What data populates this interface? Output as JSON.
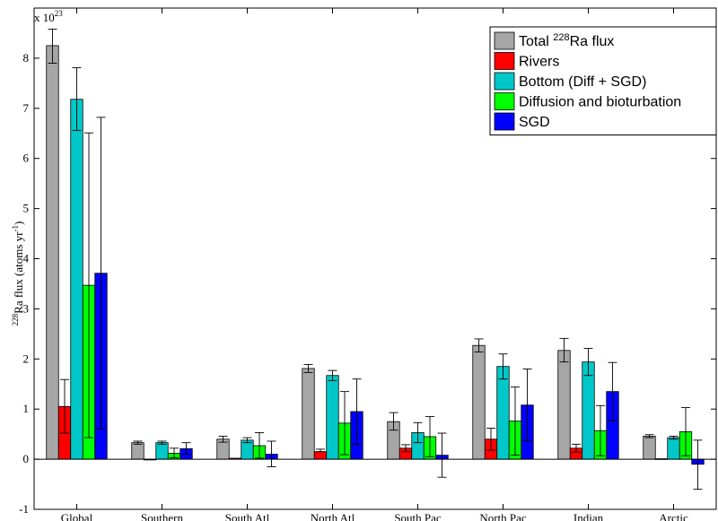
{
  "chart_data": {
    "type": "bar",
    "multiplier_label": "x 10",
    "multiplier_exp": "23",
    "ylabel_prefix": "228",
    "ylabel_main": "Ra flux (atoms yr",
    "ylabel_exp": "-1",
    "ylabel_close": ")",
    "ylim": [
      -1,
      9
    ],
    "yticks": [
      "-1",
      "0",
      "1",
      "2",
      "3",
      "4",
      "5",
      "6",
      "7",
      "8"
    ],
    "categories": [
      "Global",
      "Southern",
      "South Atl",
      "North Atl",
      "South Pac",
      "North Pac",
      "Indian",
      "Arctic"
    ],
    "legend_position": "top-right",
    "series": [
      {
        "name_pre": "Total ",
        "name_sup": "228",
        "name_post": "Ra flux",
        "color": "#a6a6a6",
        "values": [
          8.25,
          0.33,
          0.4,
          1.81,
          0.75,
          2.27,
          2.17,
          0.46
        ],
        "err_low": [
          0.35,
          0.03,
          0.06,
          0.08,
          0.17,
          0.13,
          0.23,
          0.03
        ],
        "err_high": [
          0.33,
          0.03,
          0.06,
          0.08,
          0.18,
          0.13,
          0.24,
          0.03
        ]
      },
      {
        "name_pre": "Rivers",
        "name_sup": "",
        "name_post": "",
        "color": "#ff0000",
        "values": [
          1.05,
          0.0,
          0.02,
          0.15,
          0.22,
          0.4,
          0.22,
          0.01
        ],
        "err_low": [
          0.53,
          0.0,
          0.0,
          0.0,
          0.07,
          0.22,
          0.08,
          0.0
        ],
        "err_high": [
          0.54,
          0.0,
          0.0,
          0.05,
          0.07,
          0.22,
          0.08,
          0.0
        ]
      },
      {
        "name_pre": "Bottom (Diff + SGD)",
        "name_sup": "",
        "name_post": "",
        "color": "#00c8c8",
        "values": [
          7.18,
          0.33,
          0.38,
          1.67,
          0.53,
          1.85,
          1.94,
          0.43
        ],
        "err_low": [
          0.62,
          0.03,
          0.05,
          0.1,
          0.2,
          0.25,
          0.27,
          0.03
        ],
        "err_high": [
          0.63,
          0.03,
          0.05,
          0.1,
          0.2,
          0.25,
          0.27,
          0.03
        ]
      },
      {
        "name_pre": "Diffusion and bioturbation",
        "name_sup": "",
        "name_post": "",
        "color": "#00ff00",
        "values": [
          3.47,
          0.12,
          0.27,
          0.72,
          0.45,
          0.76,
          0.57,
          0.55
        ],
        "err_low": [
          3.04,
          0.09,
          0.25,
          0.63,
          0.4,
          0.68,
          0.5,
          0.48
        ],
        "err_high": [
          3.04,
          0.1,
          0.26,
          0.63,
          0.4,
          0.68,
          0.5,
          0.48
        ]
      },
      {
        "name_pre": "SGD",
        "name_sup": "",
        "name_post": "",
        "color": "#0000ff",
        "values": [
          3.71,
          0.21,
          0.1,
          0.95,
          0.08,
          1.08,
          1.35,
          -0.1
        ],
        "err_low": [
          3.1,
          0.11,
          0.25,
          0.65,
          0.44,
          0.71,
          0.58,
          0.5
        ],
        "err_high": [
          3.11,
          0.12,
          0.26,
          0.65,
          0.44,
          0.72,
          0.58,
          0.48
        ]
      }
    ]
  }
}
